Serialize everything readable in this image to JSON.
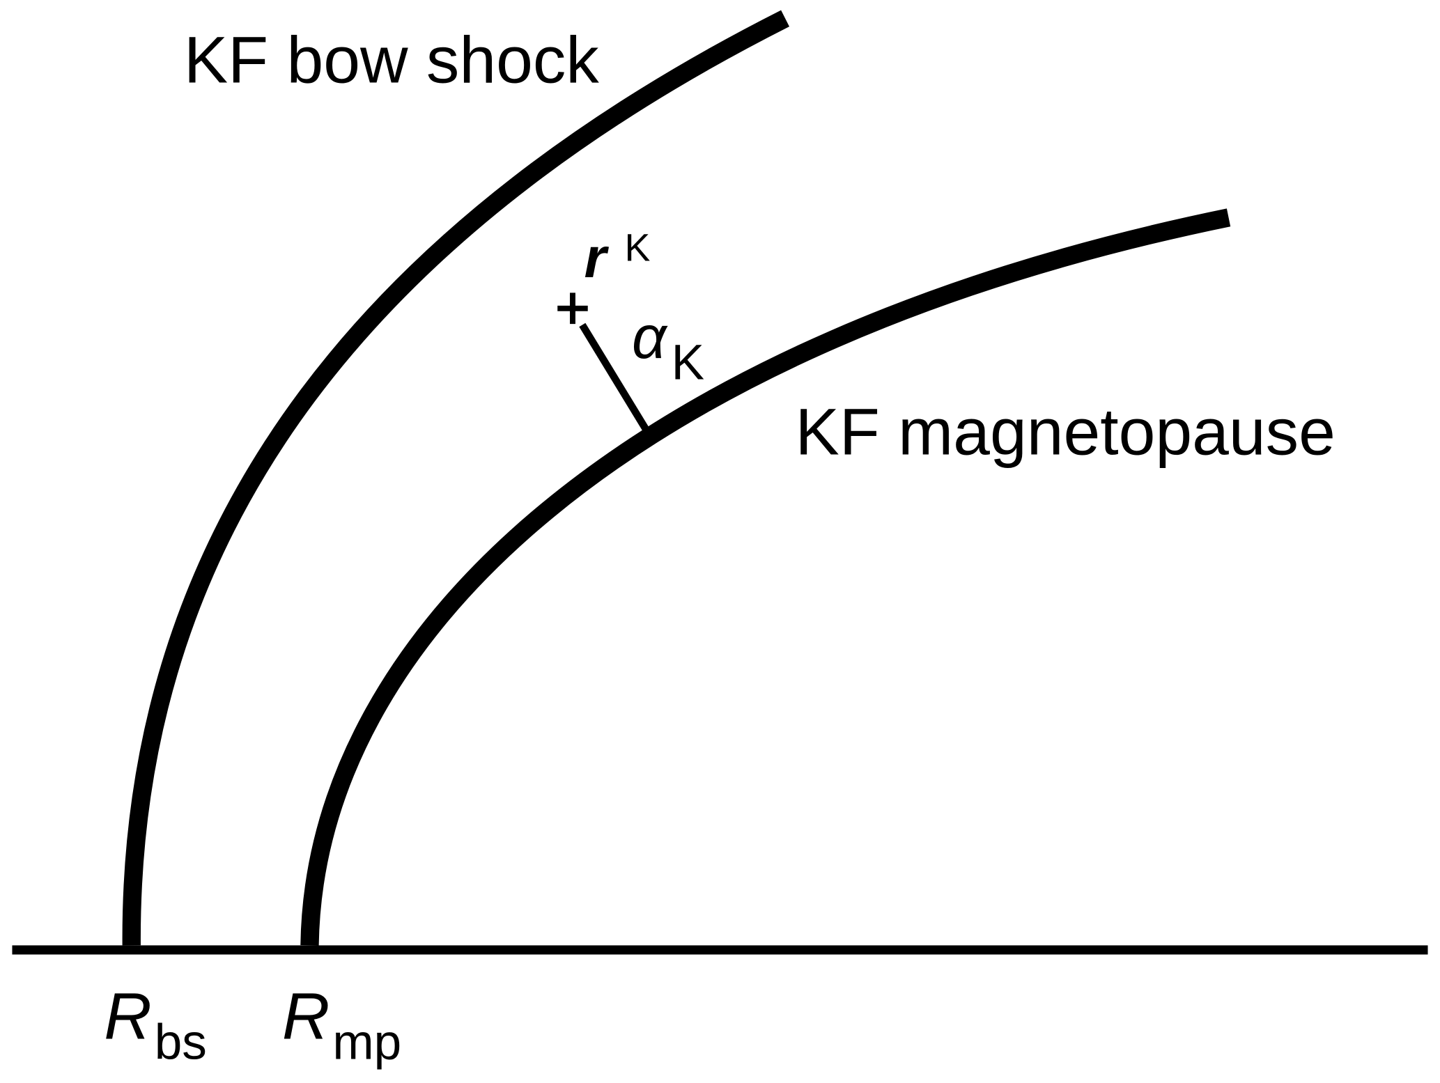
{
  "labels": {
    "bow_shock": "KF bow shock",
    "magnetopause": "KF magnetopause",
    "r": {
      "symbol": "r",
      "superscript": "K"
    },
    "alpha": {
      "symbol": "α",
      "subscript": "K"
    },
    "r_bs": {
      "symbol": "R",
      "subscript": "bs"
    },
    "r_mp": {
      "symbol": "R",
      "subscript": "mp"
    }
  }
}
